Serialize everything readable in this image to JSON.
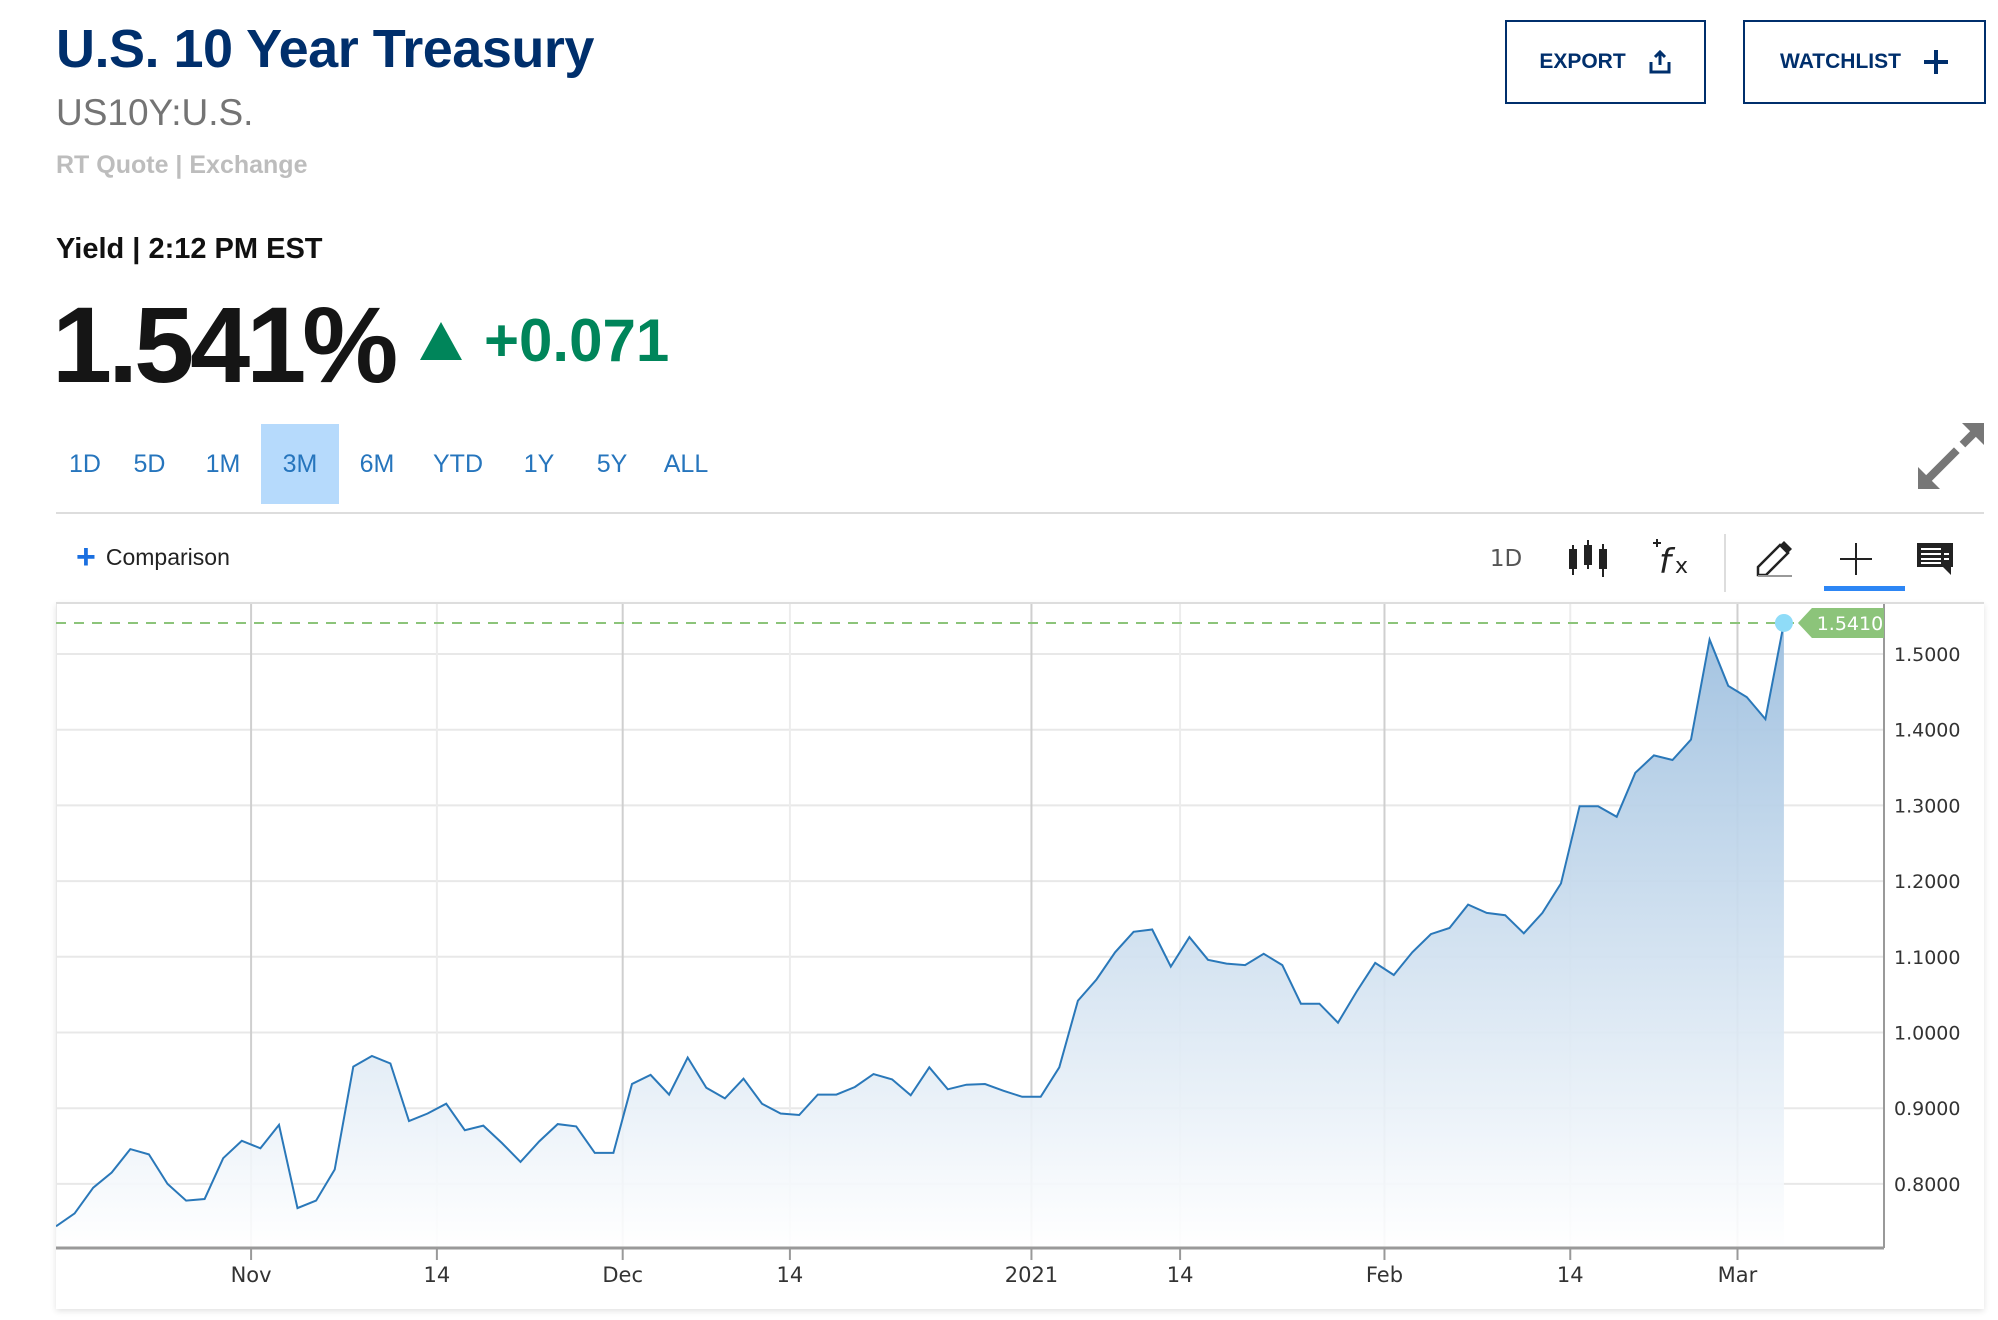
{
  "header": {
    "title": "U.S. 10 Year Treasury",
    "symbol": "US10Y:U.S.",
    "quote_source": "RT Quote | Exchange",
    "yield_label": "Yield | 2:12 PM EST",
    "price": "1.541%",
    "change": "+0.071",
    "change_direction": "up",
    "colors": {
      "title": "#002f6c",
      "positive": "#00855a"
    }
  },
  "actions": {
    "export_label": "EXPORT",
    "export_icon": "share-upload-icon",
    "watchlist_label": "WATCHLIST",
    "watchlist_icon": "plus-icon"
  },
  "range_tabs": [
    {
      "label": "1D",
      "active": false
    },
    {
      "label": "5D",
      "active": false
    },
    {
      "label": "1M",
      "active": false
    },
    {
      "label": "3M",
      "active": true
    },
    {
      "label": "6M",
      "active": false
    },
    {
      "label": "YTD",
      "active": false
    },
    {
      "label": "1Y",
      "active": false
    },
    {
      "label": "5Y",
      "active": false
    },
    {
      "label": "ALL",
      "active": false
    }
  ],
  "toolbar": {
    "comparison_label": "Comparison",
    "interval_label": "1D",
    "icons": [
      "candlestick-icon",
      "function-fx-icon",
      "pencil-draw-icon",
      "crosshair-icon",
      "comment-icon",
      "expand-icon"
    ],
    "active_tool": "crosshair-icon"
  },
  "chart_data": {
    "type": "area",
    "xlabel": "",
    "ylabel": "",
    "ylim": [
      0.72,
      1.59
    ],
    "grid": true,
    "y_ticks": [
      "0.8000",
      "0.9000",
      "1.0000",
      "1.1000",
      "1.2000",
      "1.3000",
      "1.4000",
      "1.5000"
    ],
    "x_ticks": [
      {
        "label": "Nov",
        "date": "2020-11-01",
        "major": true
      },
      {
        "label": "14",
        "date": "2020-11-14",
        "major": false
      },
      {
        "label": "Dec",
        "date": "2020-12-01",
        "major": true
      },
      {
        "label": "14",
        "date": "2020-12-14",
        "major": false
      },
      {
        "label": "2021",
        "date": "2021-01-01",
        "major": true
      },
      {
        "label": "14",
        "date": "2021-01-14",
        "major": false
      },
      {
        "label": "Feb",
        "date": "2021-02-01",
        "major": true
      },
      {
        "label": "14",
        "date": "2021-02-14",
        "major": false
      },
      {
        "label": "Mar",
        "date": "2021-03-01",
        "major": true
      }
    ],
    "last_value_label": "1.5410",
    "colors": {
      "line": "#2a78b9",
      "fill_top": "#9dbfdf",
      "last_marker": "#8fdcf8",
      "last_label_bg": "#8cc47a",
      "last_line": "#8cc47a"
    },
    "x": [
      "2020-10-16",
      "2020-10-19",
      "2020-10-20",
      "2020-10-21",
      "2020-10-22",
      "2020-10-23",
      "2020-10-26",
      "2020-10-27",
      "2020-10-28",
      "2020-10-29",
      "2020-10-30",
      "2020-11-02",
      "2020-11-03",
      "2020-11-04",
      "2020-11-05",
      "2020-11-06",
      "2020-11-09",
      "2020-11-10",
      "2020-11-11",
      "2020-11-12",
      "2020-11-13",
      "2020-11-16",
      "2020-11-17",
      "2020-11-18",
      "2020-11-19",
      "2020-11-20",
      "2020-11-23",
      "2020-11-24",
      "2020-11-25",
      "2020-11-27",
      "2020-11-30",
      "2020-12-01",
      "2020-12-02",
      "2020-12-03",
      "2020-12-04",
      "2020-12-07",
      "2020-12-08",
      "2020-12-09",
      "2020-12-10",
      "2020-12-11",
      "2020-12-14",
      "2020-12-15",
      "2020-12-16",
      "2020-12-17",
      "2020-12-18",
      "2020-12-21",
      "2020-12-22",
      "2020-12-23",
      "2020-12-24",
      "2020-12-28",
      "2020-12-29",
      "2020-12-30",
      "2020-12-31",
      "2021-01-04",
      "2021-01-05",
      "2021-01-06",
      "2021-01-07",
      "2021-01-08",
      "2021-01-11",
      "2021-01-12",
      "2021-01-13",
      "2021-01-14",
      "2021-01-15",
      "2021-01-19",
      "2021-01-20",
      "2021-01-21",
      "2021-01-22",
      "2021-01-25",
      "2021-01-26",
      "2021-01-27",
      "2021-01-28",
      "2021-01-29",
      "2021-02-01",
      "2021-02-02",
      "2021-02-03",
      "2021-02-04",
      "2021-02-05",
      "2021-02-08",
      "2021-02-09",
      "2021-02-10",
      "2021-02-11",
      "2021-02-12",
      "2021-02-16",
      "2021-02-17",
      "2021-02-18",
      "2021-02-19",
      "2021-02-22",
      "2021-02-23",
      "2021-02-24",
      "2021-02-25",
      "2021-02-26",
      "2021-03-01",
      "2021-03-02",
      "2021-03-03"
    ],
    "y": [
      0.744,
      0.761,
      0.795,
      0.815,
      0.846,
      0.839,
      0.8,
      0.778,
      0.78,
      0.834,
      0.857,
      0.847,
      0.878,
      0.768,
      0.778,
      0.819,
      0.955,
      0.969,
      0.959,
      0.883,
      0.893,
      0.906,
      0.871,
      0.877,
      0.854,
      0.829,
      0.856,
      0.879,
      0.876,
      0.841,
      0.841,
      0.932,
      0.944,
      0.918,
      0.967,
      0.927,
      0.913,
      0.939,
      0.906,
      0.893,
      0.891,
      0.918,
      0.918,
      0.928,
      0.945,
      0.938,
      0.917,
      0.954,
      0.925,
      0.931,
      0.932,
      0.923,
      0.915,
      0.915,
      0.954,
      1.042,
      1.07,
      1.106,
      1.133,
      1.136,
      1.087,
      1.126,
      1.096,
      1.091,
      1.089,
      1.104,
      1.089,
      1.038,
      1.038,
      1.013,
      1.054,
      1.092,
      1.076,
      1.106,
      1.13,
      1.138,
      1.169,
      1.158,
      1.155,
      1.131,
      1.158,
      1.197,
      1.299,
      1.299,
      1.285,
      1.343,
      1.366,
      1.36,
      1.387,
      1.519,
      1.458,
      1.443,
      1.414,
      1.541
    ]
  }
}
